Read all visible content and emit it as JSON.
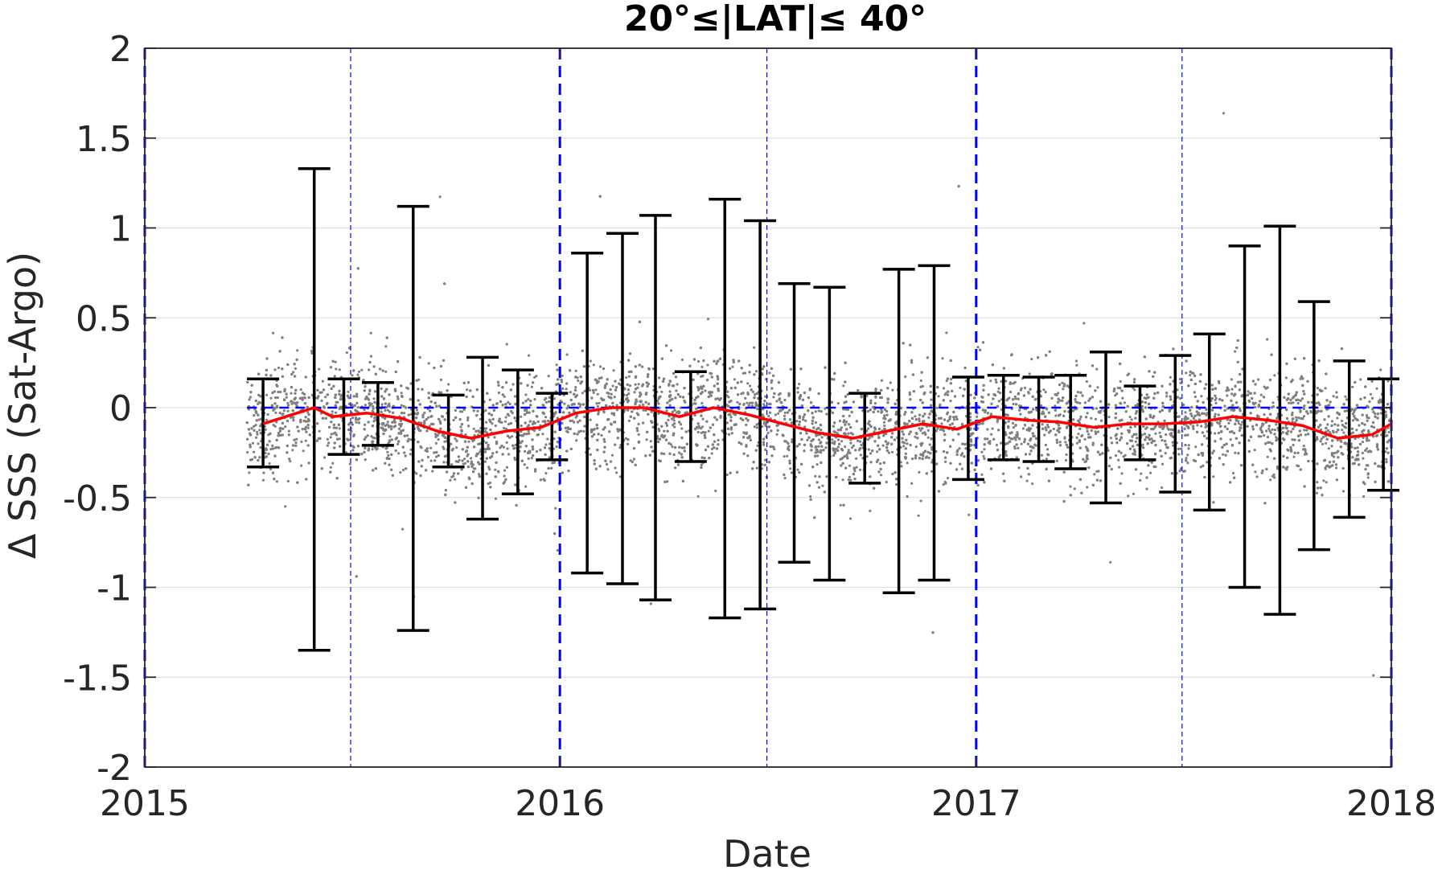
{
  "chart_data": {
    "type": "scatter",
    "title": "20°≤|LAT|≤ 40°",
    "xlabel": "Date",
    "ylabel": "Δ SSS (Sat-Argo)",
    "xlim": [
      "2015-01-01",
      "2018-01-01"
    ],
    "ylim": [
      -2,
      2
    ],
    "x_ticks": [
      "2015",
      "2016",
      "2017",
      "2018"
    ],
    "y_ticks": [
      2,
      1.5,
      1,
      0.5,
      0,
      -0.5,
      -1,
      -1.5,
      -2
    ],
    "y_tick_labels": [
      "2",
      "1.5",
      "1",
      "0.5",
      "0",
      "-0.5",
      "-1",
      "-1.5",
      "-2"
    ],
    "grid": "horizontal",
    "colors": {
      "scatter": "#808080",
      "mean_line": "#ff0000",
      "error_bars": "#000000",
      "reference_lines": "#0000ff",
      "grid": "#e0e0e0",
      "axes": "#262626"
    },
    "scatter_points": {
      "x_range": [
        "2015-04-01",
        "2018-01-01"
      ],
      "y_center": "follows mean line",
      "spread_sd": 0.15,
      "note_outliers": true
    },
    "reference_lines": {
      "year_boundaries": [
        "2015-01-01",
        "2016-01-01",
        "2017-01-01",
        "2018-01-01"
      ],
      "mid_year": [
        "2015-07-01",
        "2016-07-01",
        "2017-07-01"
      ],
      "zero_line_y": 0
    },
    "series": [
      {
        "x": [
          "2015-04-15",
          "2015-05-30",
          "2015-06-15",
          "2015-07-15",
          "2015-08-15",
          "2015-09-15",
          "2015-10-15",
          "2015-11-15",
          "2015-12-15",
          "2016-01-15",
          "2016-02-15",
          "2016-03-15",
          "2016-04-15",
          "2016-05-15",
          "2016-06-15",
          "2016-07-15",
          "2016-08-15",
          "2016-09-15",
          "2016-10-15",
          "2016-11-15",
          "2016-12-15",
          "2017-01-15",
          "2017-02-15",
          "2017-03-15",
          "2017-04-15",
          "2017-05-15",
          "2017-06-15",
          "2017-07-15",
          "2017-08-15",
          "2017-09-15",
          "2017-10-15",
          "2017-11-15",
          "2017-12-15",
          "2018-01-01"
        ],
        "mean": [
          -0.09,
          0.0,
          -0.05,
          -0.03,
          -0.06,
          -0.13,
          -0.17,
          -0.13,
          -0.11,
          -0.03,
          0.0,
          0.0,
          -0.05,
          0.0,
          -0.04,
          -0.09,
          -0.14,
          -0.17,
          -0.13,
          -0.09,
          -0.12,
          -0.05,
          -0.07,
          -0.08,
          -0.11,
          -0.09,
          -0.09,
          -0.08,
          -0.05,
          -0.07,
          -0.1,
          -0.17,
          -0.15,
          -0.09
        ]
      }
    ],
    "error_bars": [
      {
        "x": "2015-04-15",
        "upper": 0.16,
        "lower": -0.33
      },
      {
        "x": "2015-05-30",
        "upper": 1.33,
        "lower": -1.35
      },
      {
        "x": "2015-06-25",
        "upper": 0.16,
        "lower": -0.26
      },
      {
        "x": "2015-07-25",
        "upper": 0.14,
        "lower": -0.21
      },
      {
        "x": "2015-08-25",
        "upper": 1.12,
        "lower": -1.24
      },
      {
        "x": "2015-09-25",
        "upper": 0.07,
        "lower": -0.33
      },
      {
        "x": "2015-10-25",
        "upper": 0.28,
        "lower": -0.62
      },
      {
        "x": "2015-11-25",
        "upper": 0.21,
        "lower": -0.48
      },
      {
        "x": "2015-12-25",
        "upper": 0.08,
        "lower": -0.29
      },
      {
        "x": "2016-01-25",
        "upper": 0.86,
        "lower": -0.92
      },
      {
        "x": "2016-02-25",
        "upper": 0.97,
        "lower": -0.98
      },
      {
        "x": "2016-03-25",
        "upper": 1.07,
        "lower": -1.07
      },
      {
        "x": "2016-04-25",
        "upper": 0.2,
        "lower": -0.3
      },
      {
        "x": "2016-05-25",
        "upper": 1.16,
        "lower": -1.17
      },
      {
        "x": "2016-06-25",
        "upper": 1.04,
        "lower": -1.12
      },
      {
        "x": "2016-07-25",
        "upper": 0.69,
        "lower": -0.86
      },
      {
        "x": "2016-08-25",
        "upper": 0.67,
        "lower": -0.96
      },
      {
        "x": "2016-09-25",
        "upper": 0.08,
        "lower": -0.42
      },
      {
        "x": "2016-10-25",
        "upper": 0.77,
        "lower": -1.03
      },
      {
        "x": "2016-11-25",
        "upper": 0.79,
        "lower": -0.96
      },
      {
        "x": "2016-12-25",
        "upper": 0.17,
        "lower": -0.4
      },
      {
        "x": "2017-01-25",
        "upper": 0.18,
        "lower": -0.29
      },
      {
        "x": "2017-02-25",
        "upper": 0.17,
        "lower": -0.3
      },
      {
        "x": "2017-03-25",
        "upper": 0.18,
        "lower": -0.34
      },
      {
        "x": "2017-04-25",
        "upper": 0.31,
        "lower": -0.53
      },
      {
        "x": "2017-05-25",
        "upper": 0.12,
        "lower": -0.29
      },
      {
        "x": "2017-06-25",
        "upper": 0.29,
        "lower": -0.47
      },
      {
        "x": "2017-07-25",
        "upper": 0.41,
        "lower": -0.57
      },
      {
        "x": "2017-08-25",
        "upper": 0.9,
        "lower": -1.0
      },
      {
        "x": "2017-09-25",
        "upper": 1.01,
        "lower": -1.15
      },
      {
        "x": "2017-10-25",
        "upper": 0.59,
        "lower": -0.79
      },
      {
        "x": "2017-11-25",
        "upper": 0.26,
        "lower": -0.61
      },
      {
        "x": "2017-12-25",
        "upper": 0.16,
        "lower": -0.46
      }
    ]
  }
}
